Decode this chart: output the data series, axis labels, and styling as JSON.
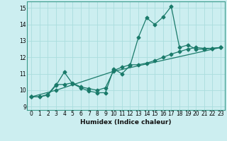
{
  "xlabel": "Humidex (Indice chaleur)",
  "bg_color": "#cceef0",
  "grid_color": "#aadddd",
  "line_color": "#1a7a6a",
  "xlim": [
    -0.5,
    23.5
  ],
  "ylim": [
    8.8,
    15.4
  ],
  "yticks": [
    9,
    10,
    11,
    12,
    13,
    14,
    15
  ],
  "xticks": [
    0,
    1,
    2,
    3,
    4,
    5,
    6,
    7,
    8,
    9,
    10,
    11,
    12,
    13,
    14,
    15,
    16,
    17,
    18,
    19,
    20,
    21,
    22,
    23
  ],
  "series1_x": [
    0,
    1,
    2,
    3,
    4,
    5,
    6,
    7,
    8,
    9,
    10,
    11,
    12,
    13,
    14,
    15,
    16,
    17,
    18,
    19,
    20,
    21,
    22,
    23
  ],
  "series1_y": [
    9.6,
    9.6,
    9.7,
    10.3,
    11.1,
    10.4,
    10.15,
    9.95,
    9.85,
    9.85,
    11.3,
    11.0,
    11.5,
    13.2,
    14.4,
    14.0,
    14.45,
    15.1,
    12.6,
    12.75,
    12.5,
    12.5,
    12.55,
    12.6
  ],
  "series2_x": [
    0,
    1,
    2,
    3,
    4,
    5,
    6,
    7,
    8,
    9,
    10,
    11,
    12,
    13,
    14,
    15,
    16,
    17,
    18,
    19,
    20,
    21,
    22,
    23
  ],
  "series2_y": [
    9.6,
    9.6,
    9.75,
    10.35,
    10.35,
    10.45,
    10.2,
    10.1,
    10.0,
    10.15,
    11.2,
    11.4,
    11.55,
    11.55,
    11.65,
    11.8,
    12.0,
    12.2,
    12.35,
    12.5,
    12.6,
    12.55,
    12.55,
    12.6
  ],
  "series3_x": [
    0,
    3,
    10,
    23
  ],
  "series3_y": [
    9.6,
    10.0,
    11.15,
    12.6
  ]
}
